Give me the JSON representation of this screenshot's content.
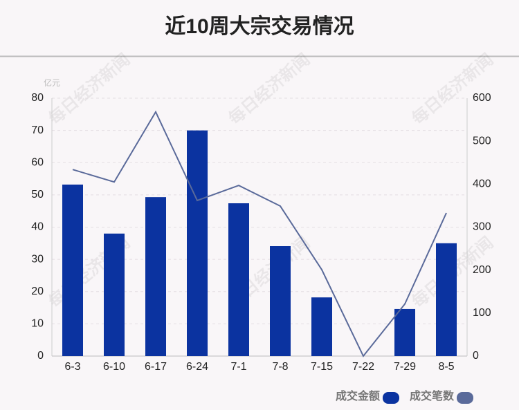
{
  "chart_data": {
    "type": "bar_line",
    "title": "近10周大宗交易情况",
    "y_unit": "亿元",
    "watermark": "每日经济新闻",
    "categories": [
      "6-3",
      "6-10",
      "6-17",
      "6-24",
      "7-1",
      "7-8",
      "7-15",
      "7-22",
      "7-29",
      "8-5"
    ],
    "series": [
      {
        "name": "成交金额",
        "type": "bar",
        "color": "#0b33a0",
        "values": [
          53.2,
          38.0,
          49.3,
          70,
          47.4,
          34.1,
          18.2,
          0,
          14.6,
          35.0
        ]
      },
      {
        "name": "成交笔数",
        "type": "line",
        "axis": "y2",
        "color": "#5a6a9a",
        "values": [
          434,
          405,
          568,
          362,
          397,
          349,
          201,
          0,
          121,
          333
        ]
      }
    ],
    "ylim": [
      0,
      80
    ],
    "yticks": [
      0,
      10,
      20,
      30,
      40,
      50,
      60,
      70,
      80
    ],
    "y2lim": [
      0,
      600
    ],
    "y2ticks": [
      0,
      100,
      200,
      300,
      400,
      500,
      600
    ],
    "grid": true
  }
}
